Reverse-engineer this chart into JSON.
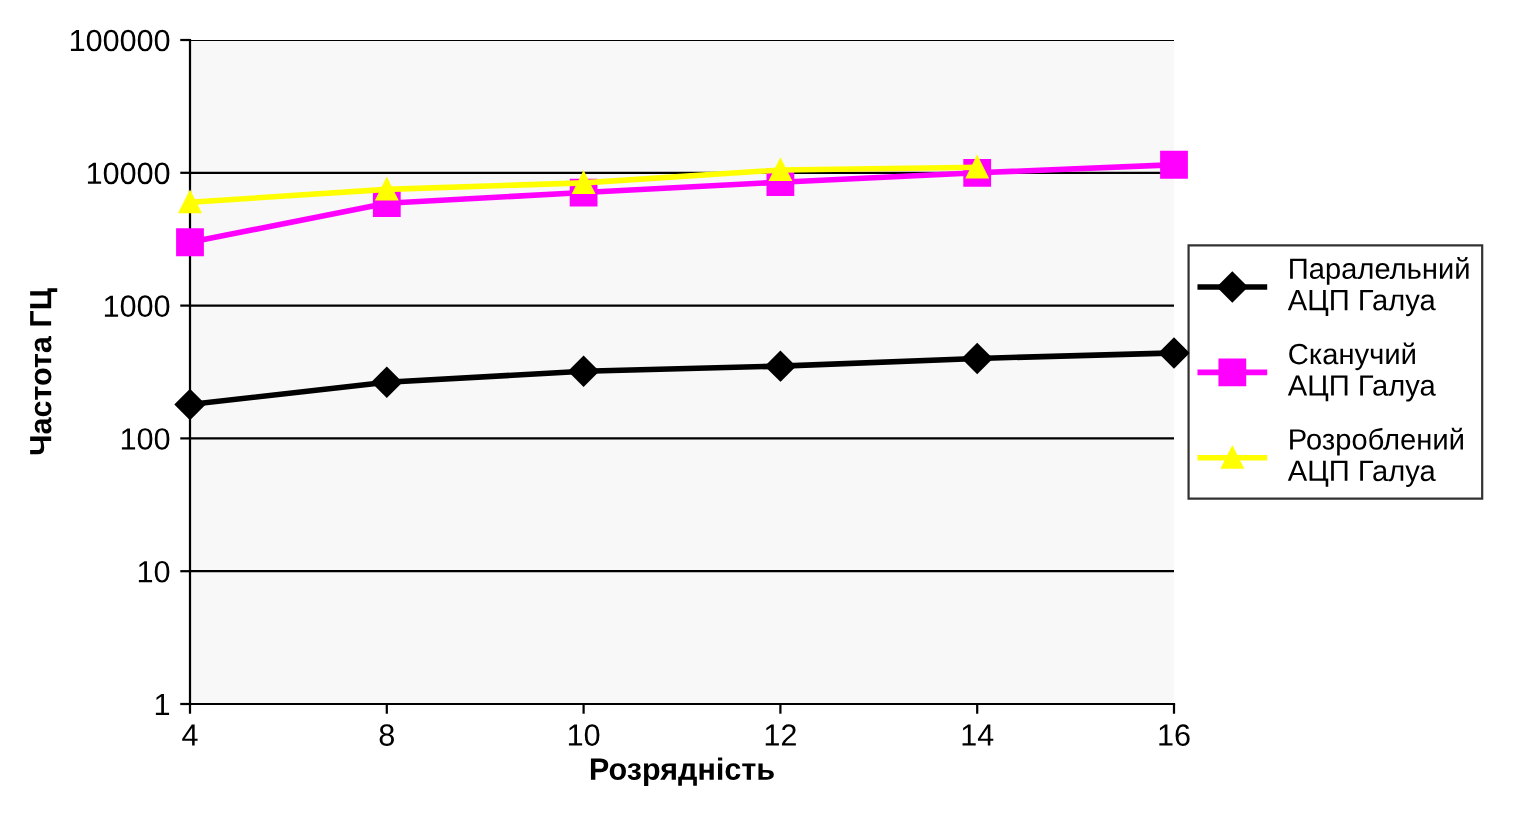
{
  "chart_data": {
    "type": "line",
    "xlabel": "Розрядність",
    "ylabel": "Частота ГЦ",
    "categories": [
      "4",
      "8",
      "10",
      "12",
      "14",
      "16"
    ],
    "series": [
      {
        "name": "Паралельний\nАЦП Галуа",
        "color": "#000000",
        "marker": "diamond",
        "values": [
          180,
          265,
          320,
          350,
          400,
          440
        ]
      },
      {
        "name": "Сканучий\nАЦП Галуа",
        "color": "#ff00ff",
        "marker": "square",
        "values": [
          3000,
          5900,
          7100,
          8500,
          10000,
          11500
        ]
      },
      {
        "name": "Розроблений\nАЦП Галуа",
        "color": "#ffff00",
        "marker": "triangle",
        "values": [
          6000,
          7500,
          8400,
          10500,
          11000,
          null
        ]
      }
    ],
    "log": true,
    "ylim": [
      1,
      100000
    ],
    "yticks": [
      1,
      10,
      100,
      1000,
      10000,
      100000
    ],
    "grid": "y",
    "legend": "right",
    "line_style": "solid"
  }
}
